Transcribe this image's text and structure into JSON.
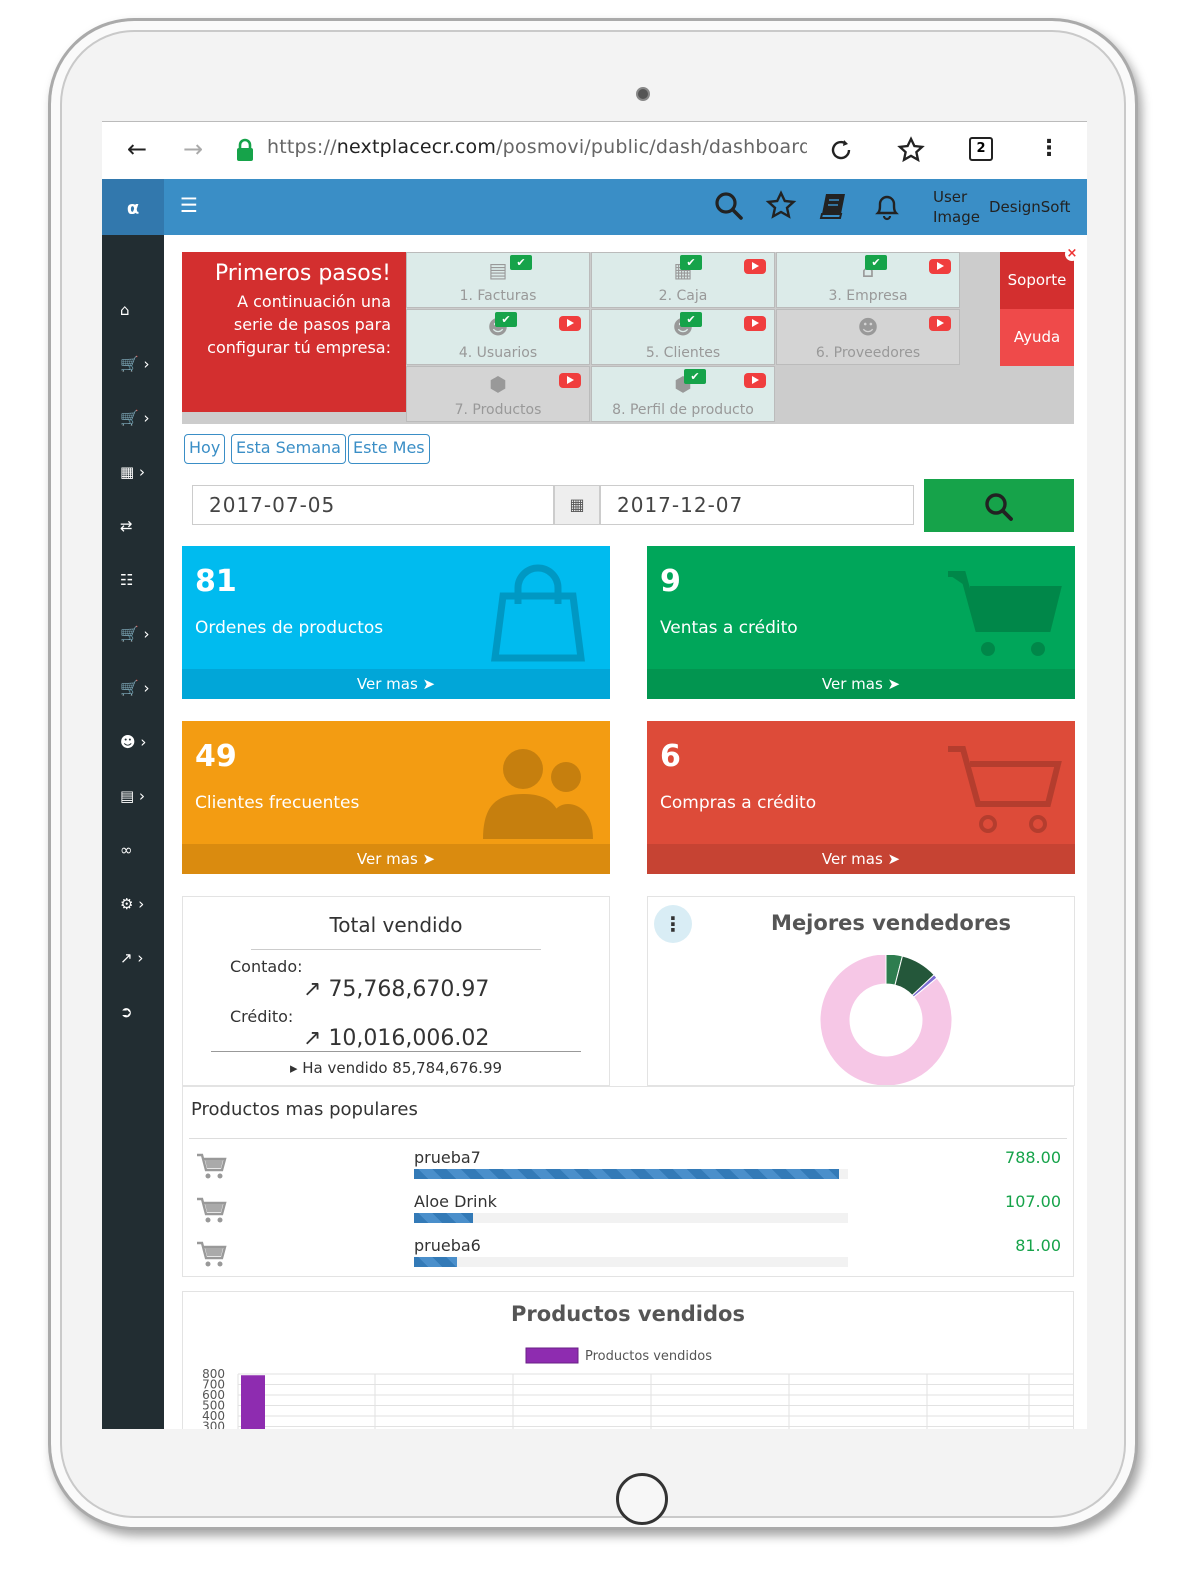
{
  "browser": {
    "url_prefix": "https://",
    "url_host": "nextplacecr.com",
    "url_path": "/posmovi/public/dash/dashboard?c",
    "tab_count": "2"
  },
  "topbar": {
    "brand": "α",
    "user_image": "User Image",
    "user_name": "DesignSoft",
    "color": "#3a8ec6"
  },
  "steps": {
    "title": "Primeros pasos!",
    "description": "A continuación una serie de pasos para configurar tú empresa:",
    "items": [
      {
        "label": "1. Facturas",
        "done": true,
        "video": false
      },
      {
        "label": "2. Caja",
        "done": true,
        "video": true
      },
      {
        "label": "3. Empresa",
        "done": true,
        "video": true
      },
      {
        "label": "4. Usuarios",
        "done": true,
        "video": true
      },
      {
        "label": "5. Clientes",
        "done": true,
        "video": true
      },
      {
        "label": "6. Proveedores",
        "done": false,
        "video": true
      },
      {
        "label": "7. Productos",
        "done": false,
        "video": true
      },
      {
        "label": "8. Perfil de producto",
        "done": true,
        "video": true
      }
    ],
    "soporte": "Soporte",
    "ayuda": "Ayuda"
  },
  "filters": {
    "hoy": "Hoy",
    "semana": "Esta Semana",
    "mes": "Este Mes",
    "date_from": "2017-07-05",
    "date_to": "2017-12-07"
  },
  "cards": [
    {
      "value": "81",
      "label": "Ordenes de productos",
      "more": "Ver mas",
      "color": "#00bbef",
      "foot": "#01a6d8",
      "icon": "bag-icon"
    },
    {
      "value": "9",
      "label": "Ventas a crédito",
      "more": "Ver mas",
      "color": "#00a65a",
      "foot": "#029550",
      "icon": "cart-icon"
    },
    {
      "value": "49",
      "label": "Clientes frecuentes",
      "more": "Ver mas",
      "color": "#f39c12",
      "foot": "#da8b0f",
      "icon": "users-icon"
    },
    {
      "value": "6",
      "label": "Compras a crédito",
      "more": "Ver mas",
      "color": "#dd4b39",
      "foot": "#c64333",
      "icon": "cart-icon"
    }
  ],
  "total_vendido": {
    "title": "Total vendido",
    "contado_label": "Contado:",
    "contado_value": "75,768,670.97",
    "credito_label": "Crédito:",
    "credito_value": "10,016,006.02",
    "summary": "Ha vendido 85,784,676.99"
  },
  "mejores_vendedores": {
    "title": "Mejores vendedores",
    "slices": [
      {
        "value": 0.04,
        "color": "#2e7d4f"
      },
      {
        "value": 0.09,
        "color": "#24573a"
      },
      {
        "value": 0.01,
        "color": "#7b6bd1"
      },
      {
        "value": 0.86,
        "color": "#f6c7e6"
      }
    ]
  },
  "populares": {
    "title": "Productos mas populares",
    "items": [
      {
        "name": "prueba7",
        "value": "788.00",
        "fraction": 0.98
      },
      {
        "name": "Aloe Drink",
        "value": "107.00",
        "fraction": 0.135
      },
      {
        "name": "prueba6",
        "value": "81.00",
        "fraction": 0.1
      }
    ]
  },
  "chart_data": {
    "type": "bar",
    "title": "Productos vendidos",
    "categories": [
      ""
    ],
    "series": [
      {
        "name": "Productos vendidos",
        "values": [
          788
        ],
        "color": "#8e2cb0"
      }
    ],
    "yticks": [
      "800",
      "700",
      "600",
      "500",
      "400",
      "300"
    ],
    "grid": true,
    "legend": "top"
  }
}
